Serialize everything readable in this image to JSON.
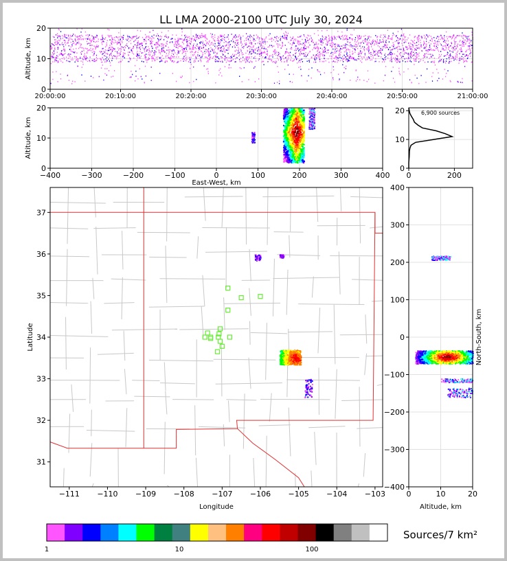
{
  "title": "LL LMA 2000-2100 UTC July 30, 2024",
  "colorbar_label": "Sources/7 km²",
  "chart_data": [
    {
      "id": "time_height",
      "type": "scatter",
      "ylabel": "Altitude, km",
      "xlim": [
        "20:00:00",
        "21:00:00"
      ],
      "ylim": [
        0,
        20
      ],
      "x_ticks": [
        "20:00:00",
        "20:10:00",
        "20:20:00",
        "20:30:00",
        "20:40:00",
        "20:50:00",
        "21:00:00"
      ],
      "y_ticks": [
        0,
        10,
        20
      ],
      "grid": true
    },
    {
      "id": "ew_altitude",
      "type": "scatter",
      "xlabel": "East-West, km",
      "ylabel": "Altitude, km",
      "xlim": [
        -400,
        400
      ],
      "ylim": [
        0,
        20
      ],
      "x_ticks": [
        -400,
        -300,
        -200,
        -100,
        0,
        100,
        200,
        300,
        400
      ],
      "y_ticks": [
        0,
        10,
        20
      ],
      "grid": true,
      "clusters": [
        {
          "x": 88,
          "y": [
            8.5,
            12
          ]
        },
        {
          "x": [
            155,
            210
          ],
          "y": [
            2,
            20
          ]
        },
        {
          "x": [
            222,
            235
          ],
          "y": [
            13,
            20
          ]
        }
      ]
    },
    {
      "id": "altitude_histogram",
      "type": "line",
      "annotation": "6,900 sources",
      "xlim": [
        0,
        280
      ],
      "ylim": [
        0,
        21
      ],
      "x_ticks": [
        0,
        200
      ],
      "y_ticks": [
        0,
        10,
        20
      ],
      "points": [
        [
          0,
          0
        ],
        [
          0,
          2
        ],
        [
          2,
          4
        ],
        [
          3,
          6
        ],
        [
          5,
          7
        ],
        [
          10,
          8
        ],
        [
          30,
          9
        ],
        [
          110,
          10
        ],
        [
          150,
          10.5
        ],
        [
          190,
          11
        ],
        [
          160,
          12
        ],
        [
          120,
          13
        ],
        [
          60,
          14
        ],
        [
          40,
          15
        ],
        [
          25,
          16
        ],
        [
          20,
          17
        ],
        [
          12,
          18
        ],
        [
          5,
          19
        ],
        [
          2,
          20
        ],
        [
          0,
          21
        ]
      ]
    },
    {
      "id": "plan_view",
      "type": "scatter",
      "xlabel": "Longitude",
      "ylabel": "Latitude",
      "xlim": [
        -111.5,
        -102.8
      ],
      "ylim": [
        30.4,
        37.6
      ],
      "x_ticks": [
        -111,
        -110,
        -109,
        -108,
        -107,
        -106,
        -105,
        -104,
        -103
      ],
      "y_ticks": [
        31,
        32,
        33,
        34,
        35,
        36,
        37
      ],
      "stations": [
        [
          -106.85,
          35.18
        ],
        [
          -106.5,
          34.95
        ],
        [
          -106.0,
          34.98
        ],
        [
          -106.85,
          34.65
        ],
        [
          -107.3,
          34.0
        ],
        [
          -107.38,
          34.1
        ],
        [
          -107.45,
          34.0
        ],
        [
          -107.1,
          34.0
        ],
        [
          -106.8,
          34.0
        ],
        [
          -107.05,
          34.2
        ],
        [
          -107.08,
          34.08
        ],
        [
          -107.05,
          33.9
        ],
        [
          -107.0,
          33.78
        ],
        [
          -107.12,
          33.65
        ],
        [
          -107.3,
          33.97
        ]
      ],
      "clusters": [
        {
          "lon": [
            -105.5,
            -104.95
          ],
          "lat": [
            33.35,
            33.7
          ]
        },
        {
          "lon": [
            -106.15,
            -106.0
          ],
          "lat": [
            35.85,
            36.0
          ]
        },
        {
          "lon": [
            -105.5,
            -105.4
          ],
          "lat": [
            35.92,
            36.0
          ]
        },
        {
          "lon": [
            -104.85,
            -104.65
          ],
          "lat": [
            32.55,
            33.0
          ]
        }
      ]
    },
    {
      "id": "altitude_ns",
      "type": "scatter",
      "xlabel": "Altitude, km",
      "ylabel": "North-South, km",
      "xlim": [
        0,
        20
      ],
      "ylim": [
        -400,
        400
      ],
      "x_ticks": [
        0,
        10,
        20
      ],
      "y_ticks": [
        -400,
        -300,
        -200,
        -100,
        0,
        100,
        200,
        300,
        400
      ],
      "clusters": [
        {
          "x": [
            7,
            13
          ],
          "y": [
            207,
            218
          ]
        },
        {
          "x": [
            2,
            20
          ],
          "y": [
            -70,
            -35
          ]
        },
        {
          "x": [
            10,
            20
          ],
          "y": [
            -120,
            -110
          ]
        },
        {
          "x": [
            12,
            20
          ],
          "y": [
            -160,
            -135
          ]
        }
      ]
    }
  ],
  "colorbar": {
    "colors": [
      "#ff55ff",
      "#8000ff",
      "#0000ff",
      "#0080ff",
      "#00ffff",
      "#00ff00",
      "#008040",
      "#408080",
      "#ffff00",
      "#ffc080",
      "#ff8000",
      "#ff0080",
      "#ff0000",
      "#c00000",
      "#800000",
      "#000000",
      "#808080",
      "#c0c0c0",
      "#ffffff"
    ],
    "tick_labels": [
      "1",
      "10",
      "100"
    ]
  }
}
